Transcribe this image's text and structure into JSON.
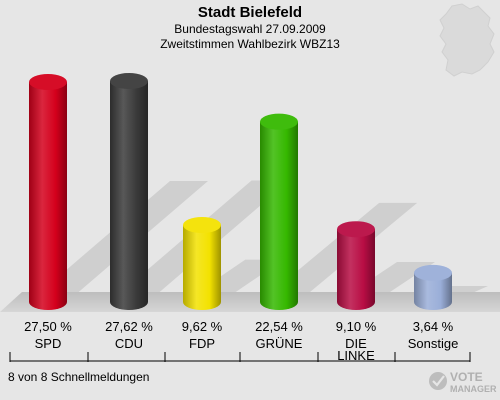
{
  "chart_data": {
    "type": "bar",
    "title": "Stadt Bielefeld",
    "subtitle_1": "Bundestagswahl 27.09.2009",
    "subtitle_2": "Zweitstimmen Wahlbezirk WBZ13",
    "categories": [
      "SPD",
      "CDU",
      "FDP",
      "GRÜNE",
      "DIE LINKE",
      "Sonstige"
    ],
    "category_lines": [
      [
        "SPD"
      ],
      [
        "CDU"
      ],
      [
        "FDP"
      ],
      [
        "GRÜNE"
      ],
      [
        "DIE",
        "LINKE"
      ],
      [
        "Sonstige"
      ]
    ],
    "values": [
      27.5,
      27.62,
      9.62,
      22.54,
      9.1,
      3.64
    ],
    "value_labels": [
      "27,50 %",
      "27,62 %",
      "9,62 %",
      "22,54 %",
      "9,10 %",
      "3,64 %"
    ],
    "colors": [
      "#d4001c",
      "#3a3a3a",
      "#f3e200",
      "#35b800",
      "#b80d44",
      "#9aaed8"
    ],
    "ylim": [
      0,
      30
    ],
    "grid": false,
    "legend": "none"
  },
  "footer": {
    "status": "8 von 8 Schnellmeldungen",
    "logo_text_1": "VOTE",
    "logo_text_2": "MANAGER"
  }
}
